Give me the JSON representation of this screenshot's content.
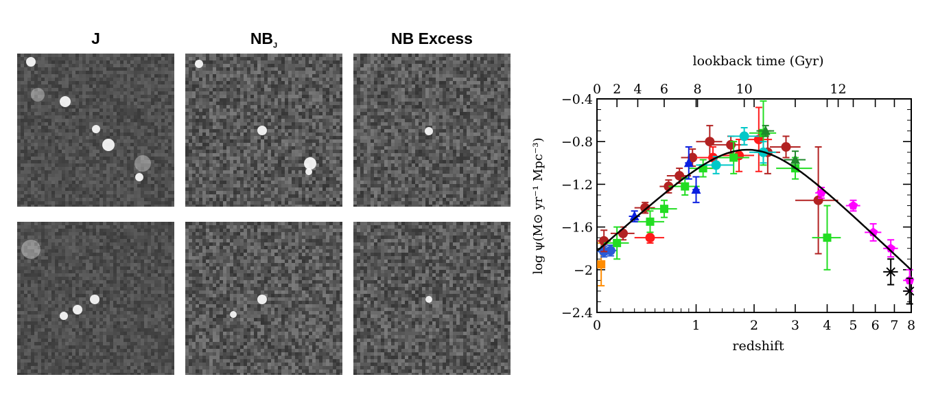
{
  "panels": {
    "titles": [
      {
        "main": "J",
        "sub": ""
      },
      {
        "main": "NB",
        "sub": "J"
      },
      {
        "main": "NB Excess",
        "sub": ""
      }
    ],
    "stamp_colors": {
      "background": "#5a5a5a",
      "source": "#ffffff"
    }
  },
  "chart_data": {
    "type": "scatter",
    "title": "",
    "xlabel": "redshift",
    "ylabel": "log ψ(M⊙ yr⁻¹ Mpc⁻³)",
    "top_axis_label": "lookback time (Gyr)",
    "x_scale": "log(1+z)",
    "xlim": [
      0,
      8
    ],
    "ylim": [
      -2.4,
      -0.4
    ],
    "x_ticks": [
      0,
      1,
      2,
      3,
      4,
      5,
      6,
      7,
      8
    ],
    "y_ticks": [
      -2.4,
      -2.0,
      -1.6,
      -1.2,
      -0.8,
      -0.4
    ],
    "y_tick_labels": [
      "−2.4",
      "−2",
      "−1.6",
      "−1.2",
      "−0.8",
      "−0.4"
    ],
    "top_ticks": [
      0,
      2,
      4,
      6,
      8,
      10,
      12
    ],
    "top_tick_redshifts": [
      0,
      0.15,
      0.33,
      0.6,
      1.02,
      1.8,
      4.4
    ],
    "grid": false,
    "legend": "none",
    "model_curve": {
      "color": "#000000",
      "form": "0.015 (1+z)^2.7 / (1 + ((1+z)/2.9)^5.6)"
    },
    "series": [
      {
        "color": "#ff8c00",
        "marker": "square",
        "points": [
          {
            "x": 0.03,
            "y": -1.95,
            "xerr": 0.02,
            "yerr": 0.2
          }
        ]
      },
      {
        "color": "#2a5bd7",
        "marker": "circle",
        "points": [
          {
            "x": 0.05,
            "y": -1.83,
            "xerr": 0.05,
            "yerr": 0.05
          },
          {
            "x": 0.1,
            "y": -1.82,
            "xerr": 0.05,
            "yerr": 0.05
          }
        ]
      },
      {
        "color": "#b22222",
        "marker": "circle",
        "points": [
          {
            "x": 0.05,
            "y": -1.73,
            "xerr": 0.05,
            "yerr": 0.1
          },
          {
            "x": 0.2,
            "y": -1.66,
            "xerr": 0.1,
            "yerr": 0.06
          },
          {
            "x": 0.4,
            "y": -1.42,
            "xerr": 0.1,
            "yerr": 0.05
          },
          {
            "x": 0.65,
            "y": -1.22,
            "xerr": 0.1,
            "yerr": 0.06
          },
          {
            "x": 0.78,
            "y": -1.12,
            "xerr": 0.15,
            "yerr": 0.07
          },
          {
            "x": 0.95,
            "y": -0.95,
            "xerr": 0.15,
            "yerr": 0.08
          },
          {
            "x": 1.2,
            "y": -0.8,
            "xerr": 0.2,
            "yerr": 0.15
          },
          {
            "x": 1.55,
            "y": -0.83,
            "xerr": 0.3,
            "yerr": 0.08
          },
          {
            "x": 2.3,
            "y": -0.9,
            "xerr": 0.3,
            "yerr": 0.2
          },
          {
            "x": 2.75,
            "y": -0.85,
            "xerr": 0.4,
            "yerr": 0.1
          },
          {
            "x": 3.7,
            "y": -1.35,
            "xerr": 0.7,
            "yerr": 0.5
          }
        ]
      },
      {
        "color": "#ff1a1a",
        "marker": "circle",
        "points": [
          {
            "x": 0.45,
            "y": -1.7,
            "xerr": 0.15,
            "yerr": 0.05
          },
          {
            "x": 1.25,
            "y": -0.95,
            "xerr": 0.25,
            "yerr": 0.1
          },
          {
            "x": 1.7,
            "y": -0.93,
            "xerr": 0.3,
            "yerr": 0.15
          },
          {
            "x": 2.1,
            "y": -0.78,
            "xerr": 0.3,
            "yerr": 0.3
          }
        ]
      },
      {
        "color": "#22dd22",
        "marker": "square",
        "points": [
          {
            "x": 0.15,
            "y": -1.75,
            "xerr": 0.1,
            "yerr": 0.15
          },
          {
            "x": 0.45,
            "y": -1.55,
            "xerr": 0.15,
            "yerr": 0.1
          },
          {
            "x": 0.6,
            "y": -1.43,
            "xerr": 0.15,
            "yerr": 0.08
          },
          {
            "x": 0.85,
            "y": -1.22,
            "xerr": 0.2,
            "yerr": 0.08
          },
          {
            "x": 1.1,
            "y": -1.05,
            "xerr": 0.2,
            "yerr": 0.08
          },
          {
            "x": 1.6,
            "y": -0.95,
            "xerr": 0.3,
            "yerr": 0.15
          },
          {
            "x": 2.2,
            "y": -0.72,
            "xerr": 0.3,
            "yerr": 0.3
          },
          {
            "x": 3.0,
            "y": -1.05,
            "xerr": 0.5,
            "yerr": 0.1
          },
          {
            "x": 4.0,
            "y": -1.7,
            "xerr": 0.5,
            "yerr": 0.3
          }
        ]
      },
      {
        "color": "#00c8c8",
        "marker": "circle",
        "points": [
          {
            "x": 1.3,
            "y": -1.02,
            "xerr": 0.3,
            "yerr": 0.08
          },
          {
            "x": 1.8,
            "y": -0.75,
            "xerr": 0.3,
            "yerr": 0.08
          },
          {
            "x": 2.2,
            "y": -0.9,
            "xerr": 0.3,
            "yerr": 0.1
          }
        ]
      },
      {
        "color": "#0a1ee0",
        "marker": "triangle",
        "points": [
          {
            "x": 0.3,
            "y": -1.5,
            "xerr": 0.05,
            "yerr": 0.05
          },
          {
            "x": 0.9,
            "y": -1.0,
            "xerr": 0.05,
            "yerr": 0.15
          },
          {
            "x": 1.0,
            "y": -1.25,
            "xerr": 0.05,
            "yerr": 0.12
          }
        ]
      },
      {
        "color": "#1f8a2b",
        "marker": "triangle",
        "points": [
          {
            "x": 2.25,
            "y": -0.7,
            "xerr": 0.2,
            "yerr": 0.05
          },
          {
            "x": 3.0,
            "y": -0.97,
            "xerr": 0.3,
            "yerr": 0.08
          }
        ]
      },
      {
        "color": "#ff00ff",
        "marker": "pentagon",
        "points": [
          {
            "x": 3.8,
            "y": -1.28,
            "xerr": 0.2,
            "yerr": 0.05
          },
          {
            "x": 5.0,
            "y": -1.4,
            "xerr": 0.3,
            "yerr": 0.05
          },
          {
            "x": 5.9,
            "y": -1.65,
            "xerr": 0.4,
            "yerr": 0.08
          },
          {
            "x": 6.8,
            "y": -1.8,
            "xerr": 0.4,
            "yerr": 0.08
          },
          {
            "x": 7.9,
            "y": -2.1,
            "xerr": 0.4,
            "yerr": 0.1
          }
        ]
      },
      {
        "color": "#000000",
        "marker": "cross",
        "points": [
          {
            "x": 6.8,
            "y": -2.02,
            "xerr": 0.4,
            "yerr": 0.12
          },
          {
            "x": 7.9,
            "y": -2.2,
            "xerr": 0.4,
            "yerr": 0.12
          }
        ]
      }
    ]
  }
}
